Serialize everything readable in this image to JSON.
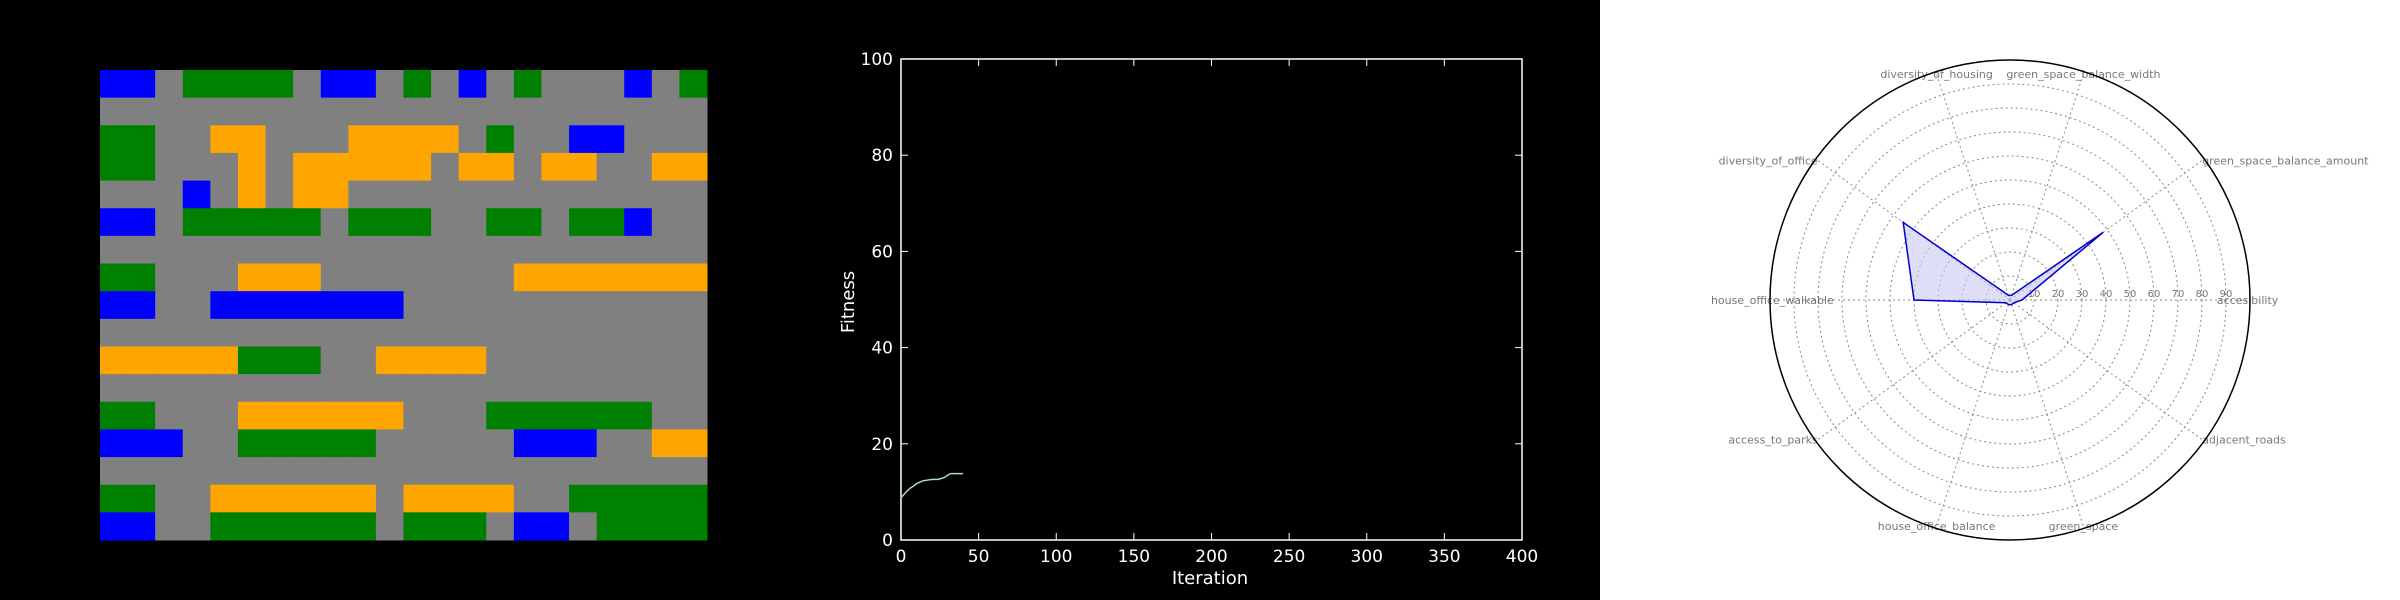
{
  "colors": {
    "background": "#000000",
    "road": "#808080",
    "housing": "#0000FF",
    "office": "#FFA500",
    "green_space": "#008000",
    "line": "#a8d8c8",
    "radar_line": "#0000CC",
    "radar_fill": "#C8C8F0"
  },
  "chart_data": [
    {
      "type": "heatmap",
      "rows": 17,
      "cols": 22,
      "legend": {
        "B": "housing",
        "O": "office",
        "G": "green_space",
        "R": "road"
      },
      "grid": [
        "BBRGGGGRBBRGRBRGRRRBRG",
        "RRRRRRRRRRRRRRRRRRRRRR",
        "GGRROORRROOOORGRRBBRRR",
        "GGRRROROOOOOROOROORROO",
        "RRRBROROORRRRRRRRRRRRR",
        "BBRGGGGGRGGGRRGGRGGBRR",
        "RRRRRRRRRRRRRRRRRRRRRR",
        "GGRRROOORRRRRRROOOOOOO",
        "BBRRBBBBBBBRRRRRRRRRRR",
        "RRRRRRRRRRRRRRRRRRRRRR",
        "OOOOOGGGRROOOORRRRRRRR",
        "RRRRRRRRRRRRRRRRRRRRRR",
        "GGRRROOOOOORRRGGGGGGRR",
        "BBBRRGGGGGRRRRRBBBRROO",
        "RRRRRRRRRRRRRRRRRRRRRR",
        "GGRROOOOOOROOOORRGGGGG",
        "BBRRGGGGGGRGGGRBBRGGGG"
      ]
    },
    {
      "type": "line",
      "xlabel": "Iteration",
      "ylabel": "Fitness",
      "xlim": [
        0,
        400
      ],
      "ylim": [
        0,
        100
      ],
      "xticks": [
        "0",
        "50",
        "100",
        "150",
        "200",
        "250",
        "300",
        "350",
        "400"
      ],
      "yticks": [
        "0",
        "20",
        "40",
        "60",
        "80",
        "100"
      ],
      "x": [
        0,
        2,
        4,
        6,
        8,
        10,
        12,
        14,
        16,
        18,
        20,
        22,
        24,
        26,
        28,
        30,
        32,
        34,
        36,
        38,
        40
      ],
      "y": [
        8.8,
        9.5,
        10.2,
        10.8,
        11.2,
        11.7,
        12.0,
        12.3,
        12.4,
        12.5,
        12.6,
        12.6,
        12.6,
        12.8,
        13.0,
        13.5,
        13.8,
        13.8,
        13.8,
        13.8,
        13.8
      ]
    },
    {
      "type": "radar",
      "axes": [
        "accesibility",
        "green_space_balance_amount",
        "green_space_balance_width",
        "diversity_of_housing",
        "diversity_of_office",
        "house_office_walkable",
        "access_to_parks",
        "house_office_balance",
        "green_space",
        "adjacent_roads"
      ],
      "rmax": 100,
      "rticks": [
        "10",
        "20",
        "30",
        "40",
        "50",
        "60",
        "70",
        "80",
        "90"
      ],
      "values": [
        5,
        48,
        2,
        2,
        55,
        40,
        2,
        2,
        2,
        2
      ]
    }
  ]
}
